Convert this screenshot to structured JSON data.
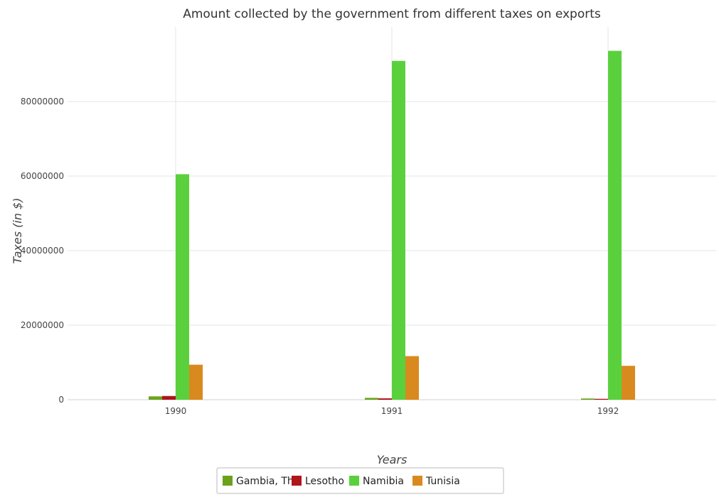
{
  "chart_data": {
    "type": "bar",
    "title": "Amount collected by the government from different taxes on exports",
    "xlabel": "Years",
    "ylabel": "Taxes (in $)",
    "categories": [
      "1990",
      "1991",
      "1992"
    ],
    "ylim": [
      0,
      100000000
    ],
    "yticks": [
      0,
      20000000,
      40000000,
      60000000,
      80000000
    ],
    "ytick_labels": [
      "0",
      "20000000",
      "40000000",
      "60000000",
      "80000000"
    ],
    "grid": true,
    "legend_position": "bottom",
    "series": [
      {
        "name": "Gambia, The",
        "color": "#6aa31a",
        "values": [
          900000,
          500000,
          330000
        ]
      },
      {
        "name": "Lesotho",
        "color": "#b0141c",
        "values": [
          1000000,
          370000,
          240000
        ]
      },
      {
        "name": "Namibia",
        "color": "#5ad13c",
        "values": [
          60500000,
          90900000,
          93600000
        ]
      },
      {
        "name": "Tunisia",
        "color": "#d98a1e",
        "values": [
          9400000,
          11700000,
          9100000
        ]
      }
    ]
  }
}
